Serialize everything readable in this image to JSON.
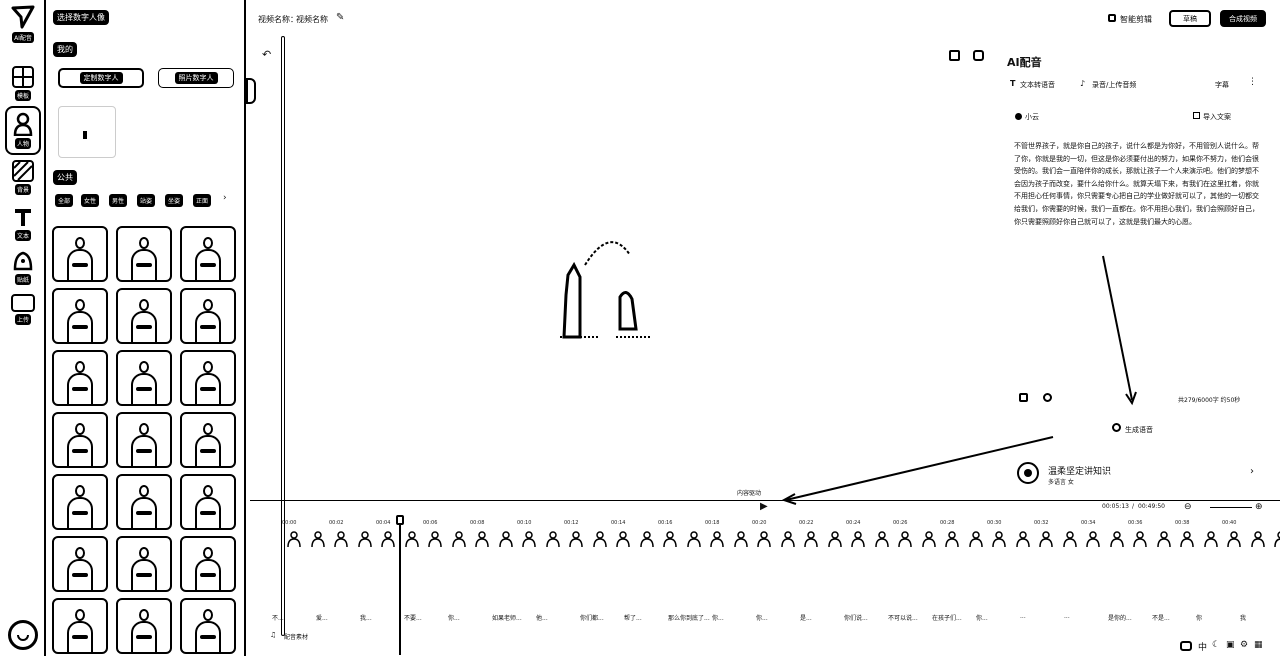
{
  "rail": {
    "items": [
      {
        "label": "AI配音",
        "icon": "paper-plane-logo-icon"
      },
      {
        "label": "模板",
        "icon": "grid-icon"
      },
      {
        "label": "人物",
        "icon": "person-icon"
      },
      {
        "label": "背景",
        "icon": "background-icon"
      },
      {
        "label": "文本",
        "icon": "text-icon"
      },
      {
        "label": "贴纸",
        "icon": "sticker-icon"
      },
      {
        "label": "上传",
        "icon": "upload-icon"
      }
    ]
  },
  "library": {
    "title": "选择数字人像",
    "mine_label": "我的",
    "tabs": [
      "定制数字人",
      "照片数字人"
    ],
    "public_label": "公共",
    "chips": [
      "全部",
      "女性",
      "男性",
      "站姿",
      "坐姿",
      "正面"
    ]
  },
  "topbar": {
    "project_label": "视频名称：",
    "project_name": "视频名称",
    "smart_cut": "智能剪辑",
    "save_btn": "草稿",
    "export_btn": "合成视频"
  },
  "panel": {
    "title": "AI配音",
    "tab_text": "文本转语音",
    "tab_record": "录音/上传音频",
    "subtitle_label": "字幕",
    "voice_name": "小云",
    "import_label": "导入文案",
    "script_text": "不管世界孩子，就是你自己的孩子，说什么都是为你好，不用管别人说什么。帮了你，你就是我的一切，但这是你必须要付出的努力，如果你不努力，他们会很受伤的。我们会一直陪伴你的成长，那就让孩子一个人来演示吧。他们的梦想不会因为孩子而改变，要什么给你什么。就算天塌下来，有我们在这里扛着，你就不用担心任何事情，你只需要专心把自己的学业做好就可以了，其他的一切都交给我们，你需要的时候，我们一直都在。你不用担心我们，我们会照顾好自己，你只需要照顾好你自己就可以了，这就是我们最大的心愿。",
    "char_count": "共279/6000字 约50秒",
    "generate_btn": "生成语音",
    "voice_profile_name": "温柔坚定讲知识",
    "voice_profile_sub": "多语言 女"
  },
  "timeline": {
    "track_label": "内容驱动",
    "time_current": "00:05:13",
    "time_total": "00:49:50",
    "ticks": [
      "00:00",
      "00:02",
      "00:04",
      "00:06",
      "00:08",
      "00:10",
      "00:12",
      "00:14",
      "00:16",
      "00:18",
      "00:20",
      "00:22",
      "00:24",
      "00:26",
      "00:28",
      "00:30",
      "00:32",
      "00:34",
      "00:36",
      "00:38",
      "00:40"
    ],
    "captions": [
      "不...",
      "爱...",
      "我...",
      "不要...",
      "你...",
      "如果老师...",
      "他...",
      "你们都...",
      "帮了...",
      "那么你到底了...",
      "你...",
      "你...",
      "是...",
      "你们说...",
      "不可以说...",
      "在孩子们...",
      "你...",
      "...",
      "...",
      "是你的...",
      "不是...",
      "你",
      "我"
    ],
    "audio_label": "配音素材"
  }
}
